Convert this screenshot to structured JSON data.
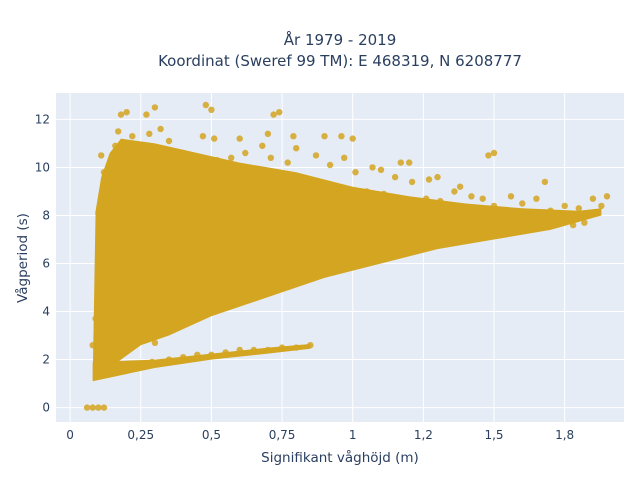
{
  "chart_data": {
    "type": "scatter",
    "title": [
      "År 1979 - 2019",
      "Koordinat (Sweref 99 TM): E 468319, N 6208777"
    ],
    "xlabel": "Signifikant våghöjd (m)",
    "ylabel": "Vågperiod (s)",
    "xlim": [
      -0.05,
      1.96
    ],
    "ylim": [
      -0.6,
      13.1
    ],
    "x_ticks": [
      0,
      0.25,
      0.5,
      0.75,
      1,
      1.25,
      1.5,
      1.75
    ],
    "x_tick_labels": [
      "0",
      "0,25",
      "0,5",
      "0,75",
      "1",
      "1,2",
      "1,5",
      "1,8"
    ],
    "y_ticks": [
      0,
      2,
      4,
      6,
      8,
      10,
      12
    ],
    "y_tick_labels": [
      "0",
      "2",
      "4",
      "6",
      "8",
      "10",
      "12"
    ],
    "grid": true,
    "marker_color": "#d4a520",
    "background_color": "#e5ecf6",
    "series": [
      {
        "points": [
          [
            0.06,
            0.0
          ],
          [
            0.08,
            0.0
          ],
          [
            0.1,
            0.0
          ],
          [
            0.12,
            0.0
          ],
          [
            0.08,
            2.6
          ],
          [
            0.09,
            3.7
          ],
          [
            0.12,
            4.6
          ],
          [
            0.1,
            6.2
          ],
          [
            0.12,
            7.5
          ],
          [
            0.1,
            8.1
          ],
          [
            0.13,
            1.5
          ],
          [
            0.15,
            2.0
          ],
          [
            0.14,
            3.1
          ],
          [
            0.16,
            4.2
          ],
          [
            0.15,
            5.3
          ],
          [
            0.17,
            6.8
          ],
          [
            0.14,
            7.9
          ],
          [
            0.15,
            8.6
          ],
          [
            0.12,
            9.8
          ],
          [
            0.11,
            10.5
          ],
          [
            0.16,
            10.9
          ],
          [
            0.13,
            9.3
          ],
          [
            0.17,
            11.5
          ],
          [
            0.18,
            12.2
          ],
          [
            0.2,
            12.3
          ],
          [
            0.22,
            11.3
          ],
          [
            0.18,
            10.4
          ],
          [
            0.19,
            9.1
          ],
          [
            0.2,
            8.1
          ],
          [
            0.18,
            7.0
          ],
          [
            0.2,
            6.2
          ],
          [
            0.19,
            5.1
          ],
          [
            0.21,
            4.0
          ],
          [
            0.2,
            3.0
          ],
          [
            0.18,
            2.2
          ],
          [
            0.2,
            1.6
          ],
          [
            0.25,
            1.7
          ],
          [
            0.24,
            2.7
          ],
          [
            0.26,
            3.8
          ],
          [
            0.25,
            5.0
          ],
          [
            0.24,
            6.3
          ],
          [
            0.27,
            7.4
          ],
          [
            0.25,
            8.6
          ],
          [
            0.26,
            9.6
          ],
          [
            0.24,
            10.8
          ],
          [
            0.28,
            11.4
          ],
          [
            0.3,
            12.5
          ],
          [
            0.27,
            12.2
          ],
          [
            0.32,
            11.6
          ],
          [
            0.31,
            10.2
          ],
          [
            0.3,
            8.9
          ],
          [
            0.31,
            7.7
          ],
          [
            0.29,
            6.4
          ],
          [
            0.3,
            5.0
          ],
          [
            0.28,
            3.8
          ],
          [
            0.3,
            2.7
          ],
          [
            0.29,
            1.9
          ],
          [
            0.35,
            2.0
          ],
          [
            0.35,
            3.3
          ],
          [
            0.36,
            4.5
          ],
          [
            0.34,
            5.7
          ],
          [
            0.36,
            6.9
          ],
          [
            0.35,
            8.1
          ],
          [
            0.37,
            9.3
          ],
          [
            0.36,
            10.5
          ],
          [
            0.35,
            11.1
          ],
          [
            0.4,
            10.6
          ],
          [
            0.41,
            9.6
          ],
          [
            0.4,
            8.3
          ],
          [
            0.42,
            7.1
          ],
          [
            0.41,
            5.9
          ],
          [
            0.4,
            4.8
          ],
          [
            0.39,
            3.6
          ],
          [
            0.4,
            2.1
          ],
          [
            0.45,
            2.2
          ],
          [
            0.45,
            3.9
          ],
          [
            0.46,
            5.0
          ],
          [
            0.47,
            6.4
          ],
          [
            0.44,
            7.6
          ],
          [
            0.46,
            8.8
          ],
          [
            0.45,
            10.0
          ],
          [
            0.47,
            11.3
          ],
          [
            0.48,
            12.6
          ],
          [
            0.5,
            12.4
          ],
          [
            0.51,
            11.2
          ],
          [
            0.52,
            10.3
          ],
          [
            0.5,
            9.2
          ],
          [
            0.52,
            7.9
          ],
          [
            0.5,
            6.6
          ],
          [
            0.51,
            5.3
          ],
          [
            0.5,
            4.3
          ],
          [
            0.5,
            2.2
          ],
          [
            0.55,
            2.3
          ],
          [
            0.55,
            4.6
          ],
          [
            0.56,
            5.6
          ],
          [
            0.57,
            6.8
          ],
          [
            0.55,
            8.0
          ],
          [
            0.56,
            9.1
          ],
          [
            0.57,
            10.4
          ],
          [
            0.6,
            11.2
          ],
          [
            0.62,
            10.6
          ],
          [
            0.6,
            9.5
          ],
          [
            0.61,
            8.3
          ],
          [
            0.62,
            7.2
          ],
          [
            0.6,
            6.0
          ],
          [
            0.61,
            5.0
          ],
          [
            0.6,
            2.4
          ],
          [
            0.65,
            2.4
          ],
          [
            0.66,
            5.2
          ],
          [
            0.67,
            6.4
          ],
          [
            0.65,
            7.5
          ],
          [
            0.66,
            8.6
          ],
          [
            0.67,
            9.7
          ],
          [
            0.68,
            10.9
          ],
          [
            0.7,
            11.4
          ],
          [
            0.71,
            10.4
          ],
          [
            0.7,
            9.4
          ],
          [
            0.72,
            8.2
          ],
          [
            0.7,
            7.0
          ],
          [
            0.71,
            5.6
          ],
          [
            0.7,
            2.4
          ],
          [
            0.75,
            2.5
          ],
          [
            0.74,
            5.7
          ],
          [
            0.75,
            6.9
          ],
          [
            0.76,
            8.0
          ],
          [
            0.75,
            9.0
          ],
          [
            0.77,
            10.2
          ],
          [
            0.74,
            12.3
          ],
          [
            0.72,
            12.2
          ],
          [
            0.79,
            11.3
          ],
          [
            0.8,
            10.8
          ],
          [
            0.81,
            9.5
          ],
          [
            0.8,
            8.6
          ],
          [
            0.82,
            7.5
          ],
          [
            0.8,
            6.2
          ],
          [
            0.8,
            2.5
          ],
          [
            0.85,
            2.6
          ],
          [
            0.85,
            6.3
          ],
          [
            0.86,
            7.3
          ],
          [
            0.84,
            8.3
          ],
          [
            0.86,
            9.3
          ],
          [
            0.87,
            10.5
          ],
          [
            0.9,
            11.3
          ],
          [
            0.92,
            10.1
          ],
          [
            0.9,
            9.0
          ],
          [
            0.91,
            7.9
          ],
          [
            0.9,
            6.8
          ],
          [
            0.95,
            7.0
          ],
          [
            0.96,
            8.0
          ],
          [
            0.95,
            9.1
          ],
          [
            0.97,
            10.4
          ],
          [
            0.96,
            11.3
          ],
          [
            1.0,
            11.2
          ],
          [
            1.01,
            9.8
          ],
          [
            1.02,
            8.6
          ],
          [
            1.0,
            7.6
          ],
          [
            1.01,
            6.7
          ],
          [
            1.05,
            7.2
          ],
          [
            1.06,
            8.1
          ],
          [
            1.05,
            9.0
          ],
          [
            1.07,
            10.0
          ],
          [
            1.1,
            9.9
          ],
          [
            1.11,
            8.9
          ],
          [
            1.1,
            8.0
          ],
          [
            1.12,
            7.0
          ],
          [
            1.15,
            7.5
          ],
          [
            1.16,
            8.4
          ],
          [
            1.15,
            9.6
          ],
          [
            1.17,
            10.2
          ],
          [
            1.2,
            10.2
          ],
          [
            1.21,
            9.4
          ],
          [
            1.2,
            8.4
          ],
          [
            1.22,
            7.3
          ],
          [
            1.25,
            7.7
          ],
          [
            1.26,
            8.7
          ],
          [
            1.27,
            9.5
          ],
          [
            1.3,
            9.6
          ],
          [
            1.31,
            8.6
          ],
          [
            1.32,
            7.6
          ],
          [
            1.35,
            8.1
          ],
          [
            1.36,
            9.0
          ],
          [
            1.38,
            9.2
          ],
          [
            1.4,
            8.2
          ],
          [
            1.42,
            8.8
          ],
          [
            1.45,
            7.9
          ],
          [
            1.46,
            8.7
          ],
          [
            1.48,
            10.5
          ],
          [
            1.5,
            10.6
          ],
          [
            1.5,
            8.4
          ],
          [
            1.55,
            8.0
          ],
          [
            1.56,
            8.8
          ],
          [
            1.6,
            8.5
          ],
          [
            1.62,
            7.9
          ],
          [
            1.65,
            8.7
          ],
          [
            1.68,
            9.4
          ],
          [
            1.7,
            8.2
          ],
          [
            1.72,
            7.8
          ],
          [
            1.75,
            8.4
          ],
          [
            1.78,
            7.6
          ],
          [
            1.8,
            8.3
          ],
          [
            1.82,
            7.7
          ],
          [
            1.85,
            8.7
          ],
          [
            1.88,
            8.4
          ],
          [
            1.9,
            8.8
          ]
        ]
      }
    ]
  }
}
